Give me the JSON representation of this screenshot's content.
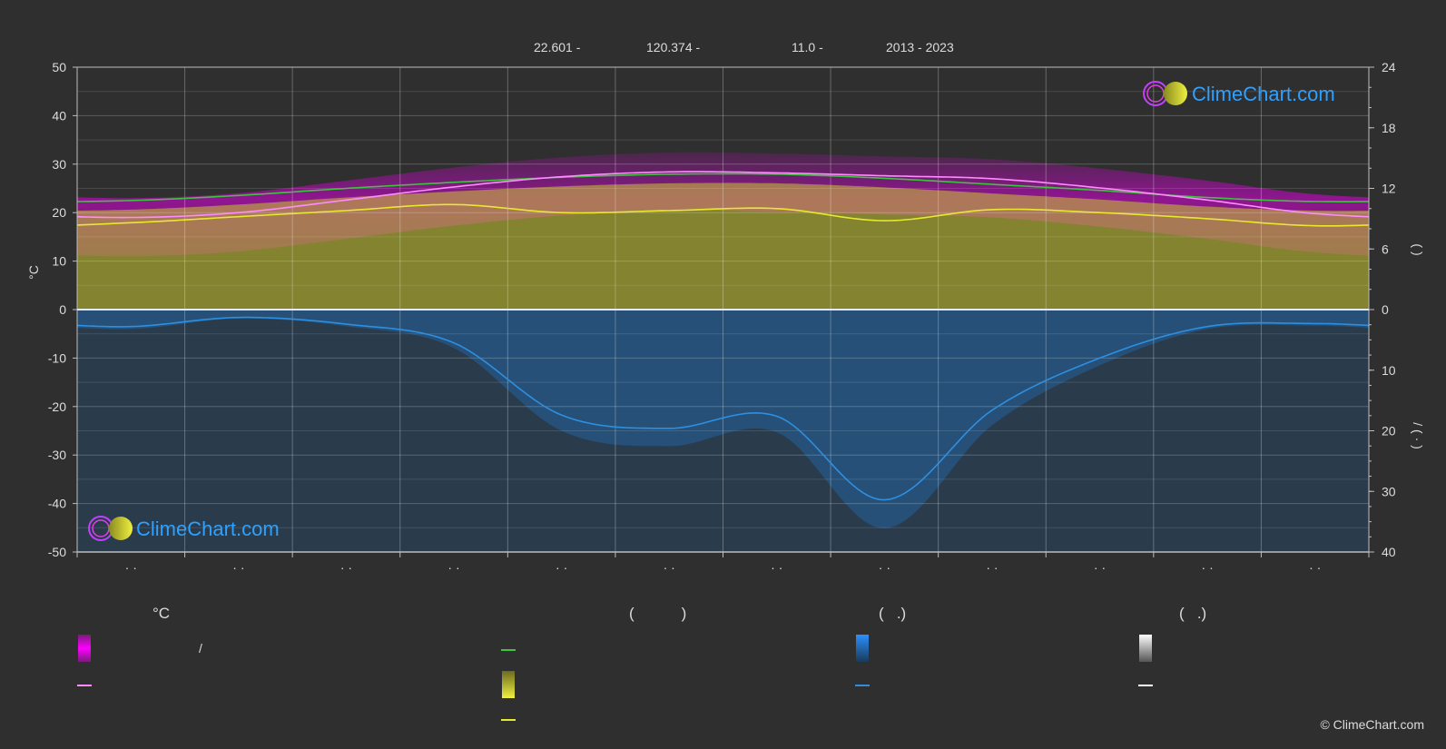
{
  "header": {
    "lat": "22.601 -",
    "lon": "120.374 -",
    "elev": "11.0 -",
    "years": "2013 - 2023"
  },
  "brand": {
    "name": "ClimeChart.com",
    "copyright": "© ClimeChart.com"
  },
  "colors": {
    "background": "#2f2f2f",
    "temp_band": "#e000e0",
    "sun_band": "#c8c832",
    "rain_band": "#1f77c8",
    "daylight_line": "#3ec43e",
    "sunshine_line": "#e8e832",
    "mean_temp_line": "#ff8cff",
    "rain_line": "#2e8fe0"
  },
  "chart_data": {
    "type": "line",
    "xlabel": "",
    "ylabel_left": "°C",
    "ylim_left": [
      -50,
      50
    ],
    "yticks_left": [
      "50",
      "40",
      "30",
      "20",
      "10",
      "0",
      "-10",
      "-20",
      "-30",
      "-40",
      "-50"
    ],
    "ylim_right_top": [
      0,
      24
    ],
    "yticks_right_top": [
      "24",
      "18",
      "12",
      "6",
      "0"
    ],
    "ylabel_right_top": "(   )",
    "ylim_right_bottom": [
      0,
      40
    ],
    "yticks_right_bottom": [
      "10",
      "20",
      "30",
      "40"
    ],
    "ylabel_right_bottom": "/  (  ·  )",
    "x_months": [
      1,
      2,
      3,
      4,
      5,
      6,
      7,
      8,
      9,
      10,
      11,
      12
    ],
    "month_labels": [
      "· ·",
      "· ·",
      "· ·",
      "· ·",
      "· ·",
      "· ·",
      "· ·",
      "· ·",
      "· ·",
      "· ·",
      "· ·",
      "· ·"
    ],
    "series": [
      {
        "key": "daylight",
        "unit": "h",
        "values": [
          10.8,
          11.3,
          12.0,
          12.6,
          13.1,
          13.4,
          13.4,
          13.0,
          12.4,
          11.8,
          11.1,
          10.7
        ]
      },
      {
        "key": "sunshine",
        "unit": "h",
        "values": [
          8.6,
          9.2,
          9.8,
          10.4,
          9.6,
          9.8,
          10.0,
          8.8,
          9.9,
          9.6,
          9.0,
          8.3
        ]
      },
      {
        "key": "mean_temp",
        "unit": "°C",
        "values": [
          19.0,
          20.0,
          22.6,
          25.3,
          27.4,
          28.4,
          28.2,
          27.6,
          27.0,
          25.1,
          22.6,
          19.8
        ]
      },
      {
        "key": "rain",
        "unit": "mm",
        "values": [
          2.8,
          1.3,
          2.4,
          5.5,
          17.4,
          19.6,
          17.6,
          31.4,
          16.6,
          8.0,
          2.8,
          2.3
        ]
      }
    ]
  },
  "legend": {
    "temp_heading": "°C",
    "temp_item1": "/",
    "sun_heading": "(           )",
    "rain_heading": "(   .)",
    "snow_heading": "(   .)"
  }
}
